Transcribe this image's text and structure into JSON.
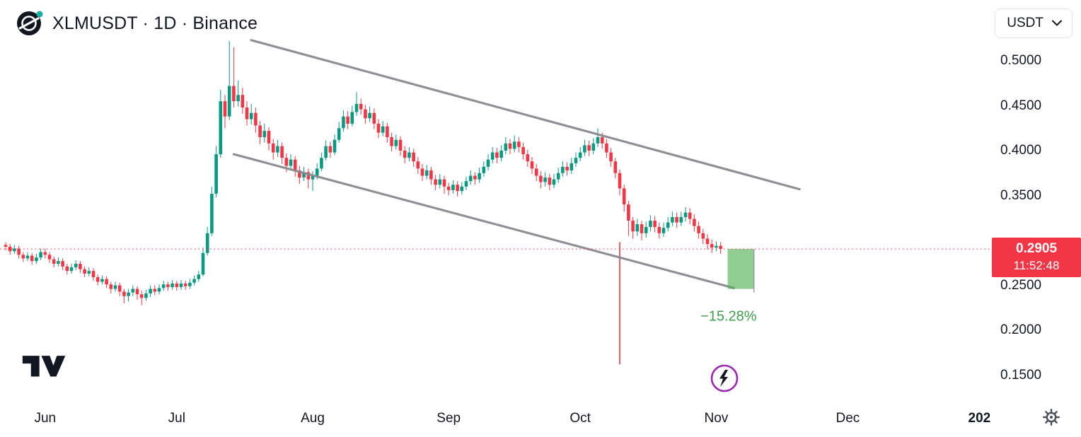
{
  "header": {
    "symbol_title": "XLMUSDT · 1D · Binance",
    "logo": "stellar-coin-icon"
  },
  "currency_selector": {
    "value": "USDT"
  },
  "price_axis": {
    "ticks": [
      {
        "label": "0.5000",
        "value": 0.5
      },
      {
        "label": "0.4500",
        "value": 0.45
      },
      {
        "label": "0.4000",
        "value": 0.4
      },
      {
        "label": "0.3500",
        "value": 0.35
      },
      {
        "label": "0.2500",
        "value": 0.25
      },
      {
        "label": "0.2000",
        "value": 0.2
      },
      {
        "label": "0.1500",
        "value": 0.15
      }
    ],
    "last_price_label": {
      "price": "0.2905",
      "countdown": "11:52:48",
      "color": "#F23645"
    }
  },
  "time_axis": {
    "labels": [
      {
        "label": "Jun",
        "day": 9
      },
      {
        "label": "Jul",
        "day": 39
      },
      {
        "label": "Aug",
        "day": 70
      },
      {
        "label": "Sep",
        "day": 101
      },
      {
        "label": "Oct",
        "day": 131
      },
      {
        "label": "Nov",
        "day": 162
      },
      {
        "label": "Dec",
        "day": 192
      },
      {
        "label": "202",
        "day": 222,
        "year": true
      }
    ]
  },
  "chart_data": {
    "type": "candlestick",
    "title": "XLMUSDT 1D Binance",
    "symbol": "XLMUSDT",
    "interval": "1D",
    "exchange": "Binance",
    "last_price": 0.2905,
    "up_color": "#089981",
    "down_color": "#F23645",
    "ylim": [
      0.13,
      0.545
    ],
    "grid": false,
    "candles_ohlc": [
      [
        0.295,
        0.298,
        0.289,
        0.293
      ],
      [
        0.293,
        0.296,
        0.284,
        0.288
      ],
      [
        0.288,
        0.295,
        0.285,
        0.291
      ],
      [
        0.291,
        0.294,
        0.28,
        0.284
      ],
      [
        0.284,
        0.287,
        0.276,
        0.28
      ],
      [
        0.28,
        0.287,
        0.277,
        0.283
      ],
      [
        0.283,
        0.286,
        0.273,
        0.277
      ],
      [
        0.277,
        0.285,
        0.274,
        0.281
      ],
      [
        0.281,
        0.291,
        0.278,
        0.287
      ],
      [
        0.287,
        0.291,
        0.28,
        0.284
      ],
      [
        0.284,
        0.287,
        0.275,
        0.279
      ],
      [
        0.279,
        0.282,
        0.27,
        0.274
      ],
      [
        0.274,
        0.281,
        0.271,
        0.277
      ],
      [
        0.277,
        0.28,
        0.267,
        0.271
      ],
      [
        0.271,
        0.274,
        0.262,
        0.266
      ],
      [
        0.266,
        0.274,
        0.263,
        0.27
      ],
      [
        0.27,
        0.278,
        0.267,
        0.274
      ],
      [
        0.274,
        0.277,
        0.264,
        0.268
      ],
      [
        0.268,
        0.271,
        0.259,
        0.263
      ],
      [
        0.263,
        0.27,
        0.26,
        0.266
      ],
      [
        0.266,
        0.269,
        0.255,
        0.259
      ],
      [
        0.259,
        0.262,
        0.25,
        0.254
      ],
      [
        0.254,
        0.261,
        0.251,
        0.257
      ],
      [
        0.257,
        0.26,
        0.247,
        0.251
      ],
      [
        0.251,
        0.254,
        0.241,
        0.246
      ],
      [
        0.246,
        0.254,
        0.243,
        0.25
      ],
      [
        0.25,
        0.253,
        0.238,
        0.243
      ],
      [
        0.243,
        0.246,
        0.23,
        0.238
      ],
      [
        0.238,
        0.246,
        0.232,
        0.242
      ],
      [
        0.242,
        0.25,
        0.238,
        0.246
      ],
      [
        0.246,
        0.249,
        0.234,
        0.24
      ],
      [
        0.24,
        0.244,
        0.228,
        0.236
      ],
      [
        0.236,
        0.245,
        0.233,
        0.241
      ],
      [
        0.241,
        0.25,
        0.237,
        0.246
      ],
      [
        0.246,
        0.25,
        0.239,
        0.243
      ],
      [
        0.243,
        0.251,
        0.24,
        0.247
      ],
      [
        0.247,
        0.255,
        0.244,
        0.251
      ],
      [
        0.251,
        0.254,
        0.244,
        0.248
      ],
      [
        0.248,
        0.256,
        0.245,
        0.252
      ],
      [
        0.252,
        0.255,
        0.244,
        0.248
      ],
      [
        0.248,
        0.256,
        0.245,
        0.252
      ],
      [
        0.252,
        0.255,
        0.245,
        0.249
      ],
      [
        0.249,
        0.257,
        0.246,
        0.253
      ],
      [
        0.253,
        0.261,
        0.25,
        0.257
      ],
      [
        0.257,
        0.266,
        0.254,
        0.262
      ],
      [
        0.262,
        0.292,
        0.26,
        0.286
      ],
      [
        0.286,
        0.315,
        0.283,
        0.308
      ],
      [
        0.308,
        0.36,
        0.305,
        0.352
      ],
      [
        0.352,
        0.405,
        0.348,
        0.396
      ],
      [
        0.396,
        0.468,
        0.392,
        0.455
      ],
      [
        0.455,
        0.462,
        0.425,
        0.438
      ],
      [
        0.438,
        0.522,
        0.434,
        0.472
      ],
      [
        0.472,
        0.515,
        0.448,
        0.455
      ],
      [
        0.455,
        0.478,
        0.449,
        0.462
      ],
      [
        0.462,
        0.47,
        0.441,
        0.448
      ],
      [
        0.448,
        0.455,
        0.428,
        0.435
      ],
      [
        0.435,
        0.452,
        0.429,
        0.442
      ],
      [
        0.442,
        0.448,
        0.42,
        0.428
      ],
      [
        0.428,
        0.433,
        0.407,
        0.415
      ],
      [
        0.415,
        0.43,
        0.409,
        0.422
      ],
      [
        0.422,
        0.426,
        0.4,
        0.408
      ],
      [
        0.408,
        0.413,
        0.39,
        0.398
      ],
      [
        0.398,
        0.412,
        0.393,
        0.405
      ],
      [
        0.405,
        0.409,
        0.385,
        0.392
      ],
      [
        0.392,
        0.397,
        0.376,
        0.383
      ],
      [
        0.383,
        0.396,
        0.378,
        0.39
      ],
      [
        0.39,
        0.394,
        0.371,
        0.378
      ],
      [
        0.378,
        0.383,
        0.363,
        0.37
      ],
      [
        0.37,
        0.382,
        0.366,
        0.376
      ],
      [
        0.376,
        0.38,
        0.358,
        0.368
      ],
      [
        0.368,
        0.377,
        0.355,
        0.372
      ],
      [
        0.372,
        0.386,
        0.368,
        0.38
      ],
      [
        0.38,
        0.398,
        0.377,
        0.392
      ],
      [
        0.392,
        0.411,
        0.389,
        0.405
      ],
      [
        0.405,
        0.41,
        0.392,
        0.398
      ],
      [
        0.398,
        0.418,
        0.395,
        0.412
      ],
      [
        0.412,
        0.432,
        0.409,
        0.425
      ],
      [
        0.425,
        0.445,
        0.421,
        0.438
      ],
      [
        0.438,
        0.444,
        0.424,
        0.43
      ],
      [
        0.43,
        0.45,
        0.427,
        0.443
      ],
      [
        0.443,
        0.465,
        0.439,
        0.452
      ],
      [
        0.452,
        0.458,
        0.44,
        0.446
      ],
      [
        0.446,
        0.451,
        0.43,
        0.436
      ],
      [
        0.436,
        0.449,
        0.432,
        0.442
      ],
      [
        0.442,
        0.447,
        0.424,
        0.43
      ],
      [
        0.43,
        0.435,
        0.414,
        0.42
      ],
      [
        0.42,
        0.433,
        0.416,
        0.427
      ],
      [
        0.427,
        0.431,
        0.409,
        0.415
      ],
      [
        0.415,
        0.42,
        0.399,
        0.405
      ],
      [
        0.405,
        0.418,
        0.401,
        0.412
      ],
      [
        0.412,
        0.416,
        0.394,
        0.4
      ],
      [
        0.4,
        0.405,
        0.386,
        0.392
      ],
      [
        0.392,
        0.404,
        0.388,
        0.398
      ],
      [
        0.398,
        0.402,
        0.382,
        0.388
      ],
      [
        0.388,
        0.393,
        0.374,
        0.38
      ],
      [
        0.38,
        0.385,
        0.366,
        0.372
      ],
      [
        0.372,
        0.384,
        0.368,
        0.378
      ],
      [
        0.378,
        0.382,
        0.362,
        0.368
      ],
      [
        0.368,
        0.373,
        0.356,
        0.362
      ],
      [
        0.362,
        0.374,
        0.358,
        0.368
      ],
      [
        0.368,
        0.372,
        0.352,
        0.36
      ],
      [
        0.36,
        0.364,
        0.35,
        0.356
      ],
      [
        0.356,
        0.367,
        0.352,
        0.362
      ],
      [
        0.362,
        0.366,
        0.349,
        0.355
      ],
      [
        0.355,
        0.365,
        0.351,
        0.36
      ],
      [
        0.36,
        0.371,
        0.356,
        0.366
      ],
      [
        0.366,
        0.378,
        0.362,
        0.372
      ],
      [
        0.372,
        0.376,
        0.362,
        0.368
      ],
      [
        0.368,
        0.381,
        0.364,
        0.375
      ],
      [
        0.375,
        0.388,
        0.371,
        0.382
      ],
      [
        0.382,
        0.396,
        0.378,
        0.39
      ],
      [
        0.39,
        0.404,
        0.386,
        0.398
      ],
      [
        0.398,
        0.403,
        0.386,
        0.392
      ],
      [
        0.392,
        0.406,
        0.388,
        0.4
      ],
      [
        0.4,
        0.415,
        0.396,
        0.408
      ],
      [
        0.408,
        0.413,
        0.396,
        0.402
      ],
      [
        0.402,
        0.417,
        0.398,
        0.41
      ],
      [
        0.41,
        0.415,
        0.398,
        0.404
      ],
      [
        0.404,
        0.409,
        0.39,
        0.396
      ],
      [
        0.396,
        0.401,
        0.382,
        0.388
      ],
      [
        0.388,
        0.393,
        0.374,
        0.38
      ],
      [
        0.38,
        0.385,
        0.366,
        0.372
      ],
      [
        0.372,
        0.377,
        0.358,
        0.365
      ],
      [
        0.365,
        0.376,
        0.36,
        0.37
      ],
      [
        0.37,
        0.374,
        0.356,
        0.362
      ],
      [
        0.362,
        0.374,
        0.358,
        0.368
      ],
      [
        0.368,
        0.381,
        0.364,
        0.375
      ],
      [
        0.375,
        0.388,
        0.371,
        0.382
      ],
      [
        0.382,
        0.387,
        0.372,
        0.378
      ],
      [
        0.378,
        0.392,
        0.374,
        0.386
      ],
      [
        0.386,
        0.398,
        0.382,
        0.392
      ],
      [
        0.392,
        0.404,
        0.388,
        0.398
      ],
      [
        0.398,
        0.412,
        0.394,
        0.406
      ],
      [
        0.406,
        0.411,
        0.394,
        0.4
      ],
      [
        0.4,
        0.414,
        0.396,
        0.408
      ],
      [
        0.408,
        0.425,
        0.404,
        0.415
      ],
      [
        0.415,
        0.42,
        0.402,
        0.408
      ],
      [
        0.408,
        0.413,
        0.392,
        0.398
      ],
      [
        0.398,
        0.403,
        0.382,
        0.388
      ],
      [
        0.388,
        0.392,
        0.369,
        0.375
      ],
      [
        0.375,
        0.379,
        0.35,
        0.358
      ],
      [
        0.358,
        0.362,
        0.332,
        0.34
      ],
      [
        0.34,
        0.344,
        0.305,
        0.322
      ],
      [
        0.322,
        0.326,
        0.302,
        0.31
      ],
      [
        0.31,
        0.324,
        0.305,
        0.318
      ],
      [
        0.318,
        0.322,
        0.3,
        0.308
      ],
      [
        0.308,
        0.321,
        0.303,
        0.315
      ],
      [
        0.315,
        0.328,
        0.31,
        0.322
      ],
      [
        0.322,
        0.327,
        0.309,
        0.315
      ],
      [
        0.315,
        0.32,
        0.302,
        0.308
      ],
      [
        0.308,
        0.32,
        0.304,
        0.314
      ],
      [
        0.314,
        0.326,
        0.31,
        0.32
      ],
      [
        0.32,
        0.332,
        0.316,
        0.326
      ],
      [
        0.326,
        0.331,
        0.314,
        0.32
      ],
      [
        0.32,
        0.332,
        0.316,
        0.326
      ],
      [
        0.326,
        0.337,
        0.321,
        0.331
      ],
      [
        0.331,
        0.336,
        0.318,
        0.324
      ],
      [
        0.324,
        0.329,
        0.31,
        0.316
      ],
      [
        0.316,
        0.321,
        0.302,
        0.308
      ],
      [
        0.308,
        0.313,
        0.296,
        0.302
      ],
      [
        0.302,
        0.307,
        0.29,
        0.296
      ],
      [
        0.296,
        0.301,
        0.286,
        0.292
      ],
      [
        0.292,
        0.299,
        0.288,
        0.294
      ],
      [
        0.294,
        0.298,
        0.285,
        0.2905
      ]
    ],
    "annotations": {
      "channel": {
        "color": "#888b90",
        "upper": {
          "d1": 56,
          "p1": 0.523,
          "d2": 181,
          "p2": 0.357
        },
        "lower": {
          "d1": 52,
          "p1": 0.396,
          "d2": 166,
          "p2": 0.247
        }
      },
      "vertical_line": {
        "color": "#F23645",
        "day": 140,
        "p1": 0.298,
        "p2": 0.162
      },
      "projection_box": {
        "d1": 164.6,
        "d2": 170.6,
        "p_top": 0.2905,
        "p_bottom": 0.246,
        "fill": "#4caf50",
        "edge": "#9598a1",
        "label": "−15.28%",
        "label_color": "#3f9e4f",
        "label_day": 158.4,
        "label_p": 0.2105
      },
      "last_price_line": {
        "price": 0.2905,
        "color": "#F23645",
        "style": "dotted"
      }
    }
  },
  "footer": {
    "watermark": "tradingview-logo",
    "lightning_badge": {
      "icon": "lightning-icon",
      "ring_color": "#9c27b0"
    },
    "settings_icon": "gear-icon"
  }
}
